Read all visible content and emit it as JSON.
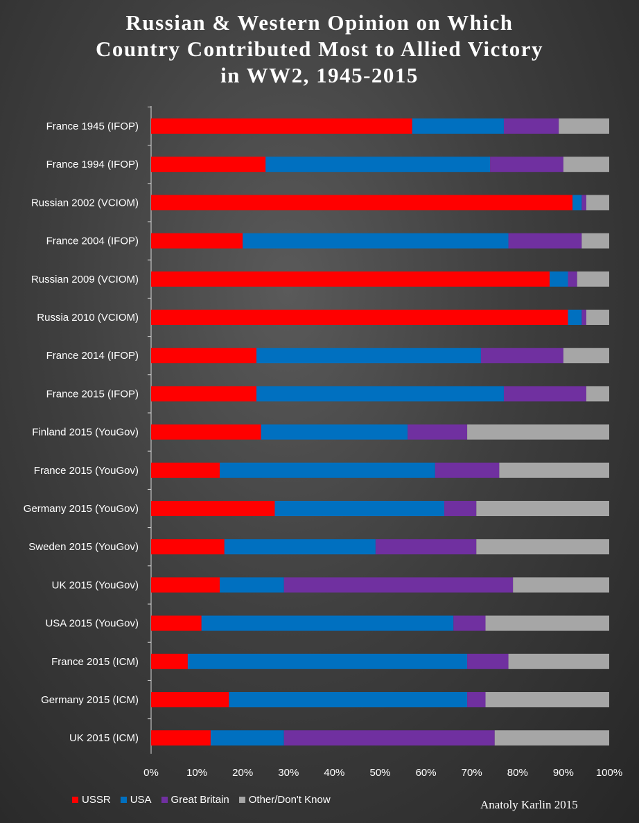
{
  "chart_data": {
    "type": "bar",
    "orientation": "horizontal",
    "stacked": "percent",
    "title_lines": [
      "Russian & Western Opinion on Which",
      "Country Contributed Most to Allied Victory",
      "in WW2, 1945-2015"
    ],
    "categories": [
      "France 1945 (IFOP)",
      "France 1994 (IFOP)",
      "Russian 2002 (VCIOM)",
      "France 2004 (IFOP)",
      "Russian 2009 (VCIOM)",
      "Russia 2010 (VCIOM)",
      "France 2014 (IFOP)",
      "France 2015 (IFOP)",
      "Finland 2015 (YouGov)",
      "France 2015 (YouGov)",
      "Germany 2015 (YouGov)",
      "Sweden 2015 (YouGov)",
      "UK 2015 (YouGov)",
      "USA 2015 (YouGov)",
      "France 2015 (ICM)",
      "Germany 2015 (ICM)",
      "UK 2015 (ICM)"
    ],
    "series": [
      {
        "name": "USSR",
        "color": "#ff0000",
        "values": [
          57,
          25,
          92,
          20,
          87,
          91,
          23,
          23,
          24,
          15,
          27,
          16,
          15,
          11,
          8,
          17,
          13
        ]
      },
      {
        "name": "USA",
        "color": "#0070c0",
        "values": [
          20,
          49,
          2,
          58,
          4,
          3,
          49,
          54,
          32,
          47,
          37,
          33,
          14,
          55,
          61,
          52,
          16
        ]
      },
      {
        "name": "Great Britain",
        "color": "#7030a0",
        "values": [
          12,
          16,
          1,
          16,
          2,
          1,
          18,
          18,
          13,
          14,
          7,
          22,
          50,
          7,
          9,
          4,
          46
        ]
      },
      {
        "name": "Other/Don't Know",
        "color": "#a6a6a6",
        "values": [
          11,
          10,
          5,
          6,
          7,
          5,
          10,
          5,
          31,
          24,
          29,
          29,
          21,
          27,
          22,
          27,
          25
        ]
      }
    ],
    "x_ticks": [
      "0%",
      "10%",
      "20%",
      "30%",
      "40%",
      "50%",
      "60%",
      "70%",
      "80%",
      "90%",
      "100%"
    ],
    "xlim": [
      0,
      100
    ],
    "grid": false,
    "legend_position": "bottom-left"
  },
  "credit": "Anatoly Karlin 2015"
}
